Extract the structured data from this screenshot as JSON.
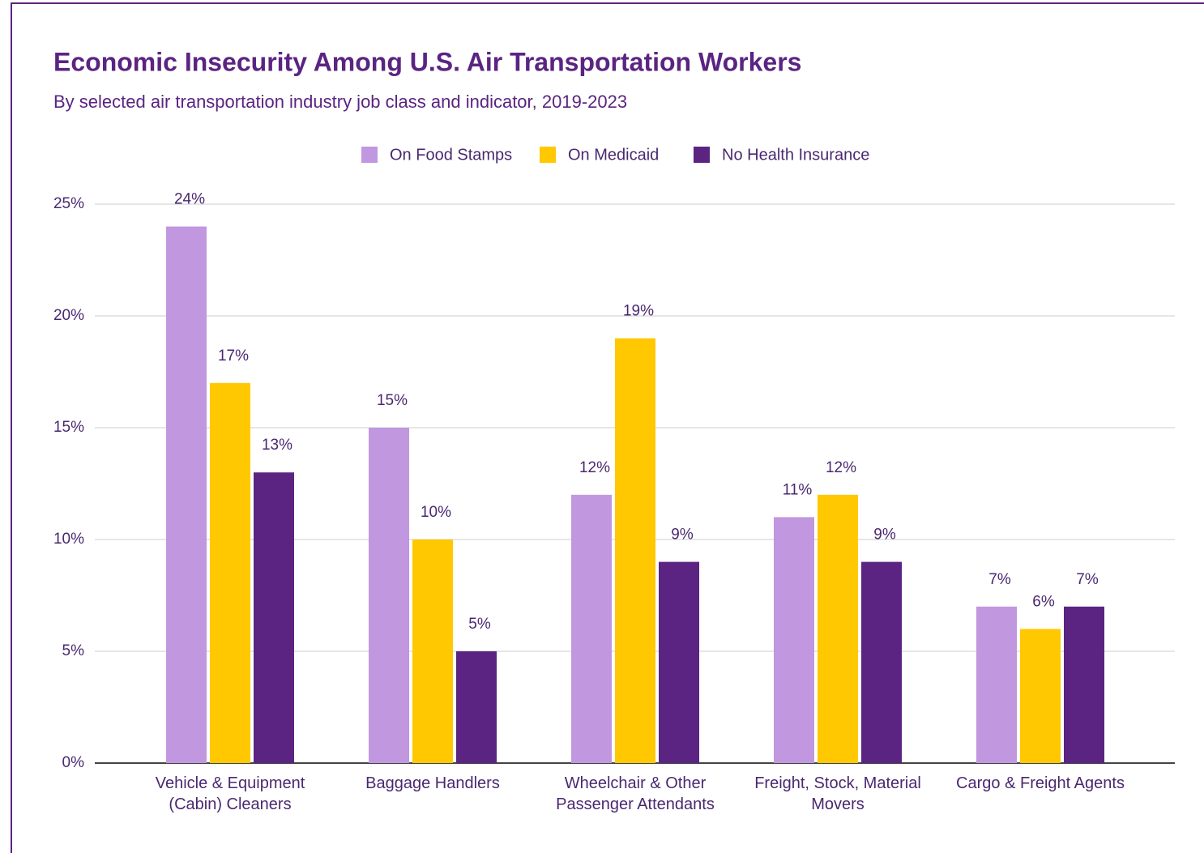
{
  "chart_data": {
    "type": "bar",
    "title": "Economic Insecurity Among U.S. Air Transportation Workers",
    "subtitle": "By selected air transportation industry job class and indicator, 2019-2023",
    "categories": [
      "Vehicle & Equipment (Cabin) Cleaners",
      "Baggage Handlers",
      "Wheelchair & Other Passenger Attendants",
      "Freight, Stock, Material Movers",
      "Cargo & Freight Agents"
    ],
    "series": [
      {
        "name": "On Food Stamps",
        "color": "#c197e0",
        "values": [
          24,
          15,
          12,
          11,
          7
        ],
        "value_labels": [
          "24%",
          "15%",
          "12%",
          "11%",
          "7%"
        ]
      },
      {
        "name": "On Medicaid",
        "color": "#ffc800",
        "values": [
          17,
          10,
          19,
          12,
          6
        ],
        "value_labels": [
          "17%",
          "10%",
          "19%",
          "12%",
          "6%"
        ]
      },
      {
        "name": "No Health Insurance",
        "color": "#5b2482",
        "values": [
          13,
          5,
          9,
          9,
          7
        ],
        "value_labels": [
          "13%",
          "5%",
          "9%",
          "9%",
          "7%"
        ]
      }
    ],
    "ylim": [
      0,
      25
    ],
    "yticks": [
      {
        "value": 0,
        "label": "0%"
      },
      {
        "value": 5,
        "label": "5%"
      },
      {
        "value": 10,
        "label": "10%"
      },
      {
        "value": 15,
        "label": "15%"
      },
      {
        "value": 20,
        "label": "20%"
      },
      {
        "value": 25,
        "label": "25%"
      }
    ],
    "grid": true,
    "legend": "top"
  }
}
